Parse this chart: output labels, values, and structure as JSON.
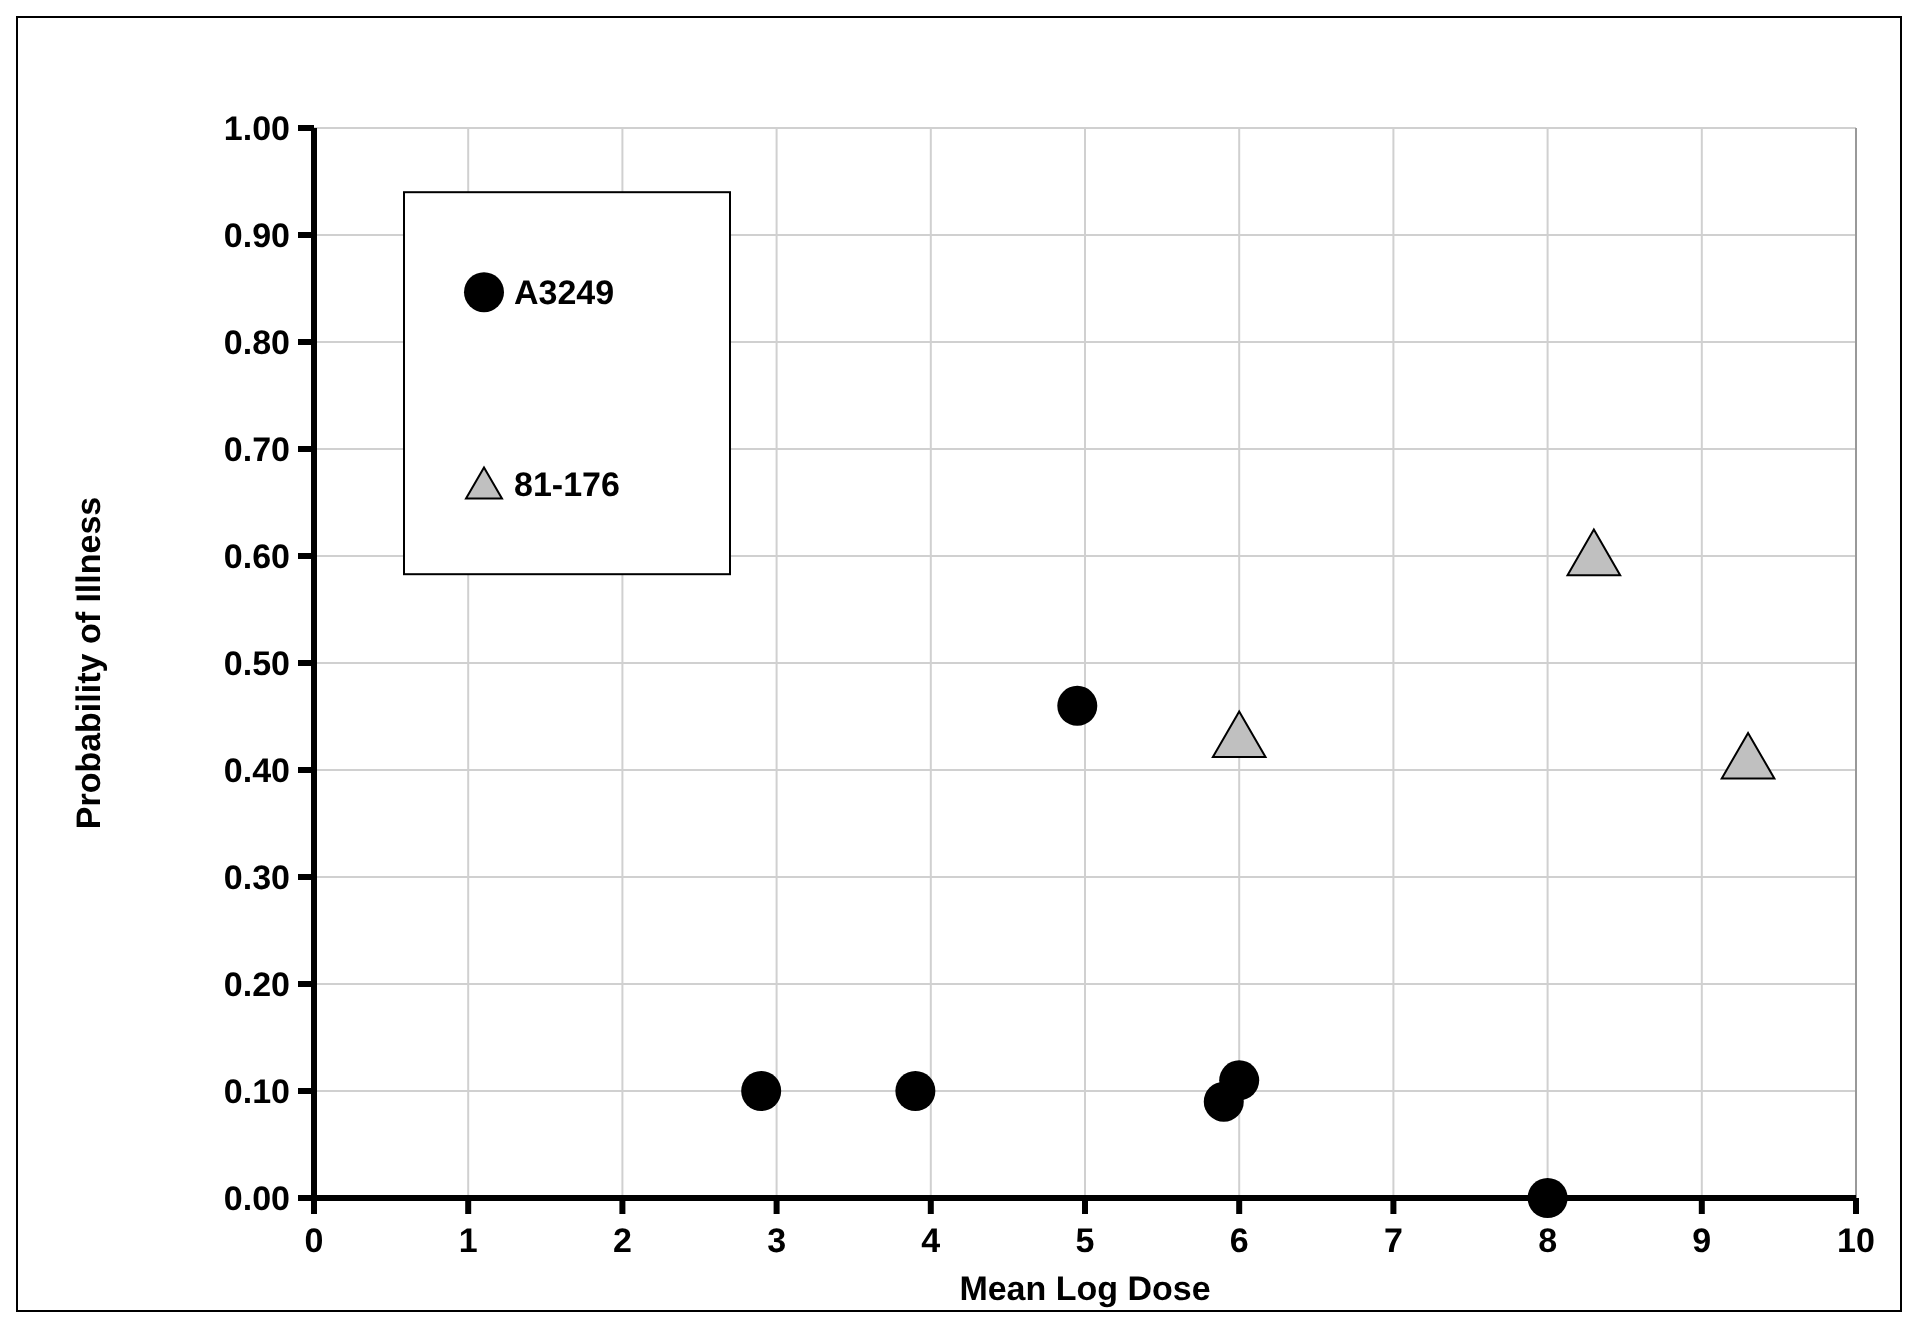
{
  "chart_data": {
    "type": "scatter",
    "xlabel": "Mean Log Dose",
    "ylabel": "Probability of Illness",
    "xlim": [
      0,
      10
    ],
    "xticks": [
      0,
      1,
      2,
      3,
      4,
      5,
      6,
      7,
      8,
      9,
      10
    ],
    "ylim": [
      0,
      1
    ],
    "yticks": [
      {
        "value": 0,
        "label": "0.00"
      },
      {
        "value": 0.1,
        "label": "0.10"
      },
      {
        "value": 0.2,
        "label": "0.20"
      },
      {
        "value": 0.3,
        "label": "0.30"
      },
      {
        "value": 0.4,
        "label": "0.40"
      },
      {
        "value": 0.5,
        "label": "0.50"
      },
      {
        "value": 0.6,
        "label": "0.60"
      },
      {
        "value": 0.7,
        "label": "0.70"
      },
      {
        "value": 0.8,
        "label": "0.80"
      },
      {
        "value": 0.9,
        "label": "0.90"
      },
      {
        "value": 1,
        "label": "1.00"
      }
    ],
    "grid": true,
    "legend": "top left",
    "series": [
      {
        "name": "A3249",
        "color": "#000000",
        "marker": "circle",
        "x": [
          2.9,
          3.9,
          4.95,
          5.9,
          6.0,
          8.0
        ],
        "values": [
          0.1,
          0.1,
          0.46,
          0.09,
          0.11,
          0.0
        ]
      },
      {
        "name": "81-176",
        "color": "#c0c0c0",
        "marker": "triangle",
        "x": [
          6.0,
          8.3,
          9.3
        ],
        "values": [
          0.43,
          0.6,
          0.41
        ]
      }
    ]
  }
}
